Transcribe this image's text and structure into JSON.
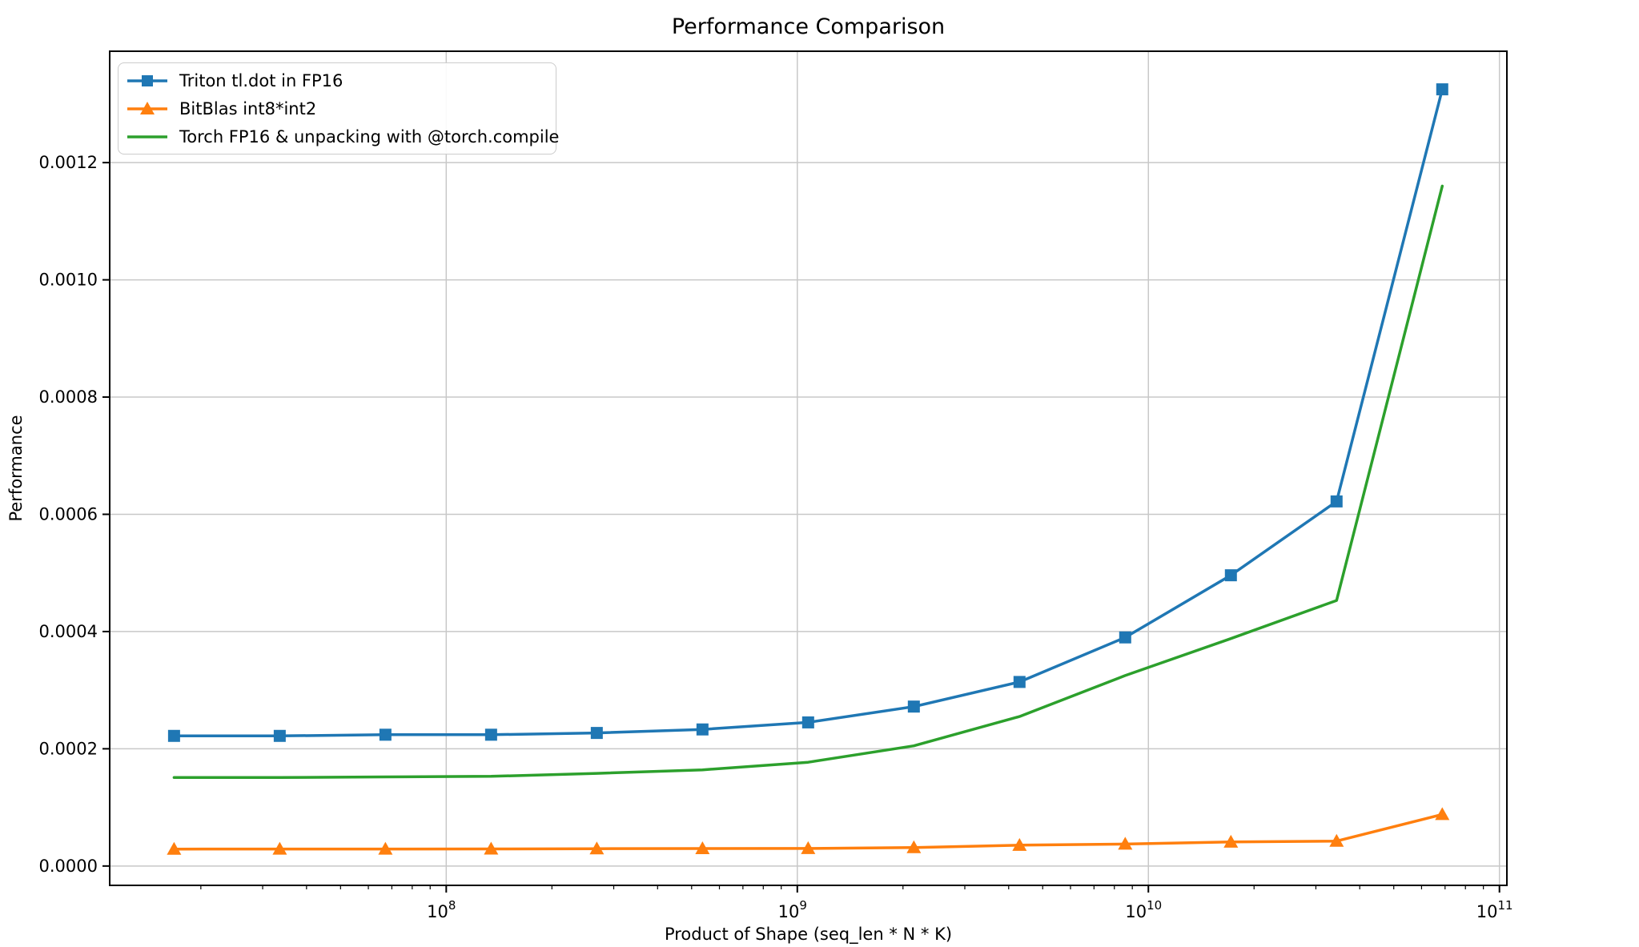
{
  "chart_data": {
    "type": "line",
    "title": "Performance Comparison",
    "xlabel": "Product of Shape (seq_len * N * K)",
    "ylabel": "Performance",
    "x_scale": "log",
    "grid": true,
    "legend_position": "upper left",
    "xlim": [
      11000000,
      105000000000
    ],
    "ylim": [
      -3.3e-05,
      0.00139
    ],
    "x_ticks": [
      {
        "value": 100000000,
        "exp": "8"
      },
      {
        "value": 1000000000,
        "exp": "9"
      },
      {
        "value": 10000000000,
        "exp": "10"
      },
      {
        "value": 100000000000,
        "exp": "11"
      }
    ],
    "y_ticks": [
      {
        "value": 0.0,
        "label": "0.0000"
      },
      {
        "value": 0.0002,
        "label": "0.0002"
      },
      {
        "value": 0.0004,
        "label": "0.0004"
      },
      {
        "value": 0.0006,
        "label": "0.0006"
      },
      {
        "value": 0.0008,
        "label": "0.0008"
      },
      {
        "value": 0.001,
        "label": "0.0010"
      },
      {
        "value": 0.0012,
        "label": "0.0012"
      }
    ],
    "x": [
      16777216,
      33554432,
      67108864,
      134217728,
      268435456,
      536870912,
      1073741824,
      2147483648,
      4294967296,
      8589934592,
      17179869184,
      34359738368,
      68719476736
    ],
    "series": [
      {
        "name": "Triton tl.dot in FP16",
        "color": "#1f77b4",
        "marker": "square",
        "values": [
          0.000222,
          0.000222,
          0.000224,
          0.000224,
          0.000227,
          0.000233,
          0.000245,
          0.000272,
          0.000314,
          0.00039,
          0.000496,
          0.000622,
          0.001325
        ]
      },
      {
        "name": "BitBlas int8*int2",
        "color": "#ff7f0e",
        "marker": "triangle",
        "values": [
          2.88e-05,
          2.9e-05,
          2.9e-05,
          2.92e-05,
          2.95e-05,
          2.98e-05,
          3e-05,
          3.15e-05,
          3.55e-05,
          3.75e-05,
          4.1e-05,
          4.25e-05,
          8.8e-05
        ]
      },
      {
        "name": "Torch FP16 & unpacking with @torch.compile",
        "color": "#2ca02c",
        "marker": "none",
        "values": [
          0.000151,
          0.000151,
          0.000152,
          0.000153,
          0.000158,
          0.000164,
          0.000177,
          0.000205,
          0.000255,
          0.000325,
          0.000388,
          0.000453,
          0.00116
        ]
      }
    ]
  }
}
